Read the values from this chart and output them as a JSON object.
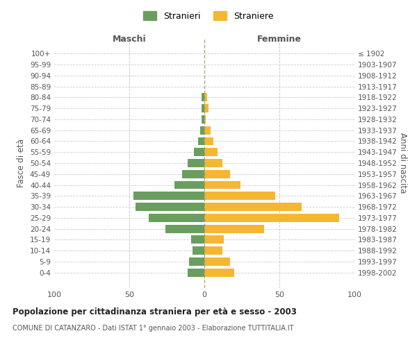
{
  "age_groups": [
    "100+",
    "95-99",
    "90-94",
    "85-89",
    "80-84",
    "75-79",
    "70-74",
    "65-69",
    "60-64",
    "55-59",
    "50-54",
    "45-49",
    "40-44",
    "35-39",
    "30-34",
    "25-29",
    "20-24",
    "15-19",
    "10-14",
    "5-9",
    "0-4"
  ],
  "birth_years": [
    "≤ 1902",
    "1903-1907",
    "1908-1912",
    "1913-1917",
    "1918-1922",
    "1923-1927",
    "1928-1932",
    "1933-1937",
    "1938-1942",
    "1943-1947",
    "1948-1952",
    "1953-1957",
    "1958-1962",
    "1963-1967",
    "1968-1972",
    "1973-1977",
    "1978-1982",
    "1983-1987",
    "1988-1992",
    "1993-1997",
    "1998-2002"
  ],
  "maschi": [
    0,
    0,
    0,
    0,
    2,
    2,
    2,
    3,
    4,
    7,
    11,
    15,
    20,
    47,
    46,
    37,
    26,
    9,
    8,
    10,
    11
  ],
  "femmine": [
    0,
    0,
    0,
    0,
    2,
    3,
    1,
    4,
    6,
    9,
    12,
    17,
    24,
    47,
    65,
    90,
    40,
    13,
    12,
    17,
    20
  ],
  "maschi_color": "#6a9e5f",
  "femmine_color": "#f5b731",
  "background_color": "#ffffff",
  "grid_color": "#cccccc",
  "title": "Popolazione per cittadinanza straniera per età e sesso - 2003",
  "subtitle": "COMUNE DI CATANZARO - Dati ISTAT 1° gennaio 2003 - Elaborazione TUTTITALIA.IT",
  "ylabel_left": "Fasce di età",
  "ylabel_right": "Anni di nascita",
  "xlabel_left": "Maschi",
  "xlabel_right": "Femmine",
  "legend_maschi": "Stranieri",
  "legend_femmine": "Straniere",
  "xlim": 100,
  "xticks": [
    -100,
    -50,
    0,
    50,
    100
  ],
  "xticklabels": [
    "100",
    "50",
    "0",
    "50",
    "100"
  ]
}
